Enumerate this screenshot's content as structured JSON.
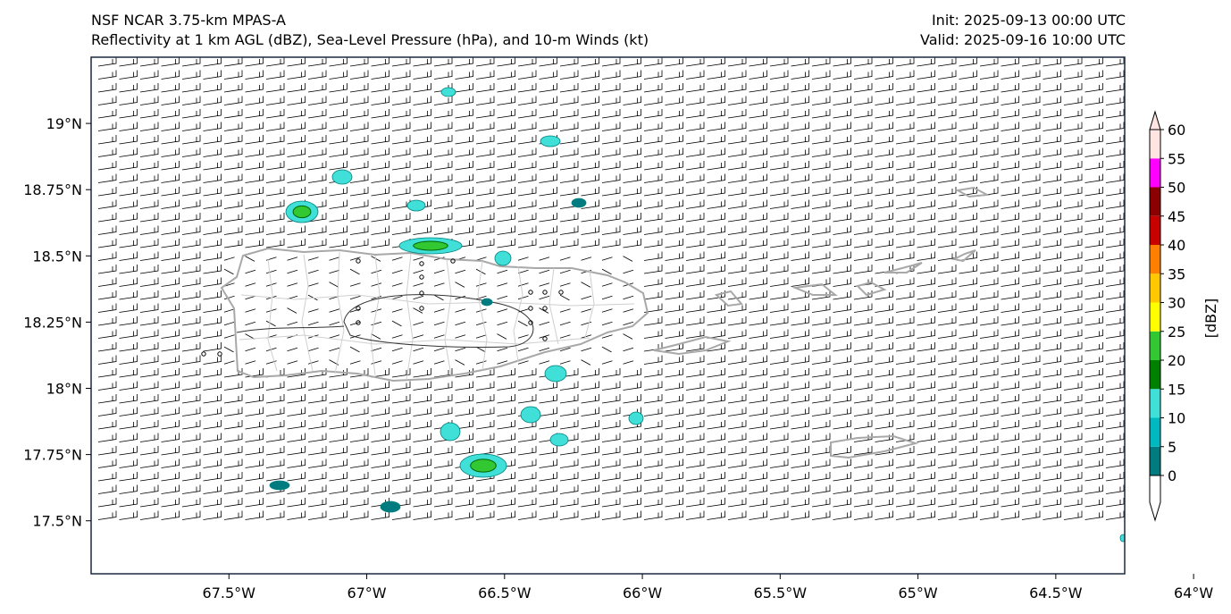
{
  "header": {
    "model": "NSF NCAR 3.75-km MPAS-A",
    "fields": "Reflectivity at 1 km AGL (dBZ), Sea-Level Pressure (hPa), and 10-m Winds (kt)",
    "init": "Init: 2025-09-13 00:00 UTC",
    "valid": "Valid: 2025-09-16 10:00 UTC"
  },
  "axes": {
    "lon_labels": [
      "67.5°W",
      "67°W",
      "66.5°W",
      "66°W",
      "65.5°W",
      "65°W",
      "64.5°W",
      "64°W"
    ],
    "lat_labels": [
      "19°N",
      "18.75°N",
      "18.5°N",
      "18.25°N",
      "18°N",
      "17.75°N",
      "17.5°N"
    ],
    "lon_values": [
      -67.5,
      -67.0,
      -66.5,
      -66.0,
      -65.5,
      -65.0,
      -64.5,
      -64.0
    ],
    "lat_values": [
      19.0,
      18.75,
      18.5,
      18.25,
      18.0,
      17.75,
      17.5
    ],
    "lon_range": [
      -68.0,
      -64.25
    ],
    "lat_range": [
      17.3,
      19.25
    ]
  },
  "colorbar": {
    "label": "[dBZ]",
    "levels": [
      "0",
      "5",
      "10",
      "15",
      "20",
      "25",
      "30",
      "35",
      "40",
      "45",
      "50",
      "55",
      "60"
    ],
    "colors": [
      "#007c80",
      "#00b8c0",
      "#40e0d8",
      "#008000",
      "#32c832",
      "#ffff00",
      "#ffc800",
      "#ff7f00",
      "#c80000",
      "#8b0000",
      "#ff00ff",
      "#ffe4e1"
    ]
  },
  "colors": {
    "coast": "#a8a8a8",
    "frame": "#1a2a40",
    "barb": "#000000"
  }
}
